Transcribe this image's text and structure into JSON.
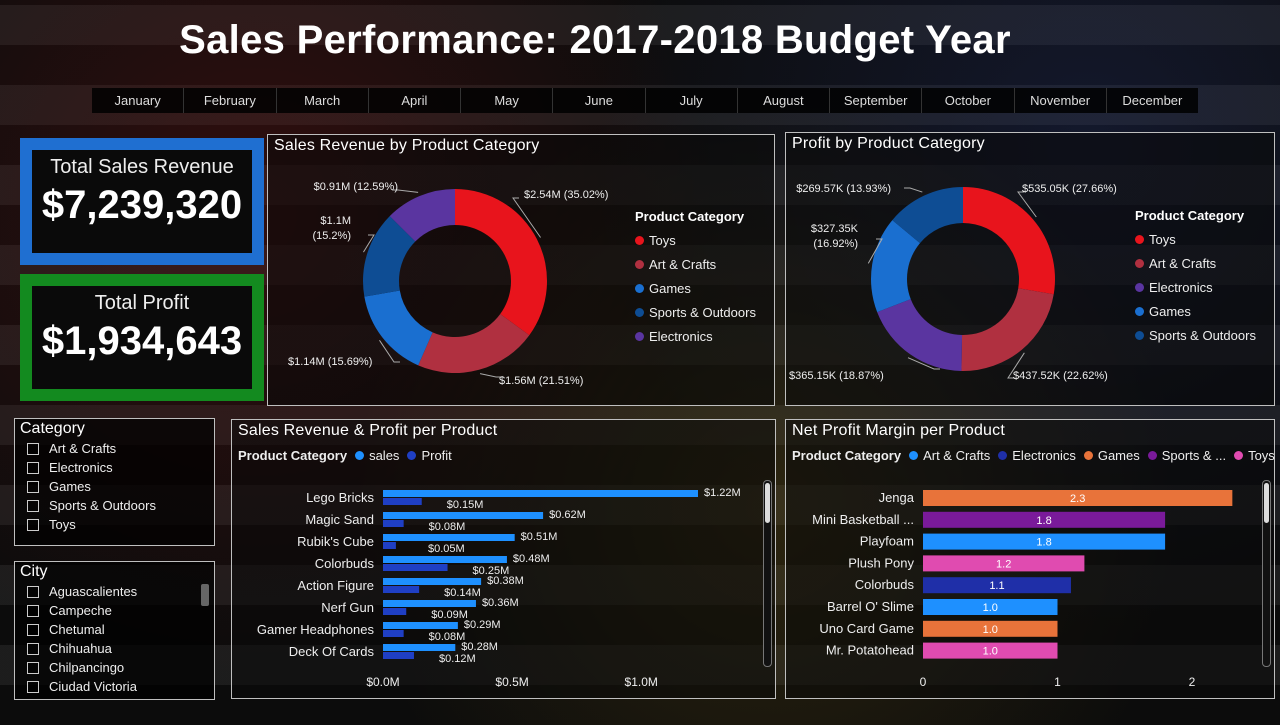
{
  "title": "Sales Performance: 2017-2018 Budget Year",
  "months": [
    "January",
    "February",
    "March",
    "April",
    "May",
    "June",
    "July",
    "August",
    "September",
    "October",
    "November",
    "December"
  ],
  "kpis": {
    "sales_label": "Total Sales Revenue",
    "sales_value": "$7,239,320",
    "profit_label": "Total Profit",
    "profit_value": "$1,934,643"
  },
  "panels": {
    "sales_donut_title": "Sales Revenue by Product Category",
    "profit_donut_title": "Profit by Product Category",
    "bar_title": "Sales Revenue & Profit per Product",
    "margin_title": "Net Profit Margin per Product"
  },
  "slicers": {
    "category": {
      "title": "Category",
      "items": [
        "Art & Crafts",
        "Electronics",
        "Games",
        "Sports & Outdoors",
        "Toys"
      ]
    },
    "city": {
      "title": "City",
      "items": [
        "Aguascalientes",
        "Campeche",
        "Chetumal",
        "Chihuahua",
        "Chilpancingo",
        "Ciudad Victoria"
      ]
    }
  },
  "colors": {
    "toys": "#e8141c",
    "art": "#b03040",
    "games": "#1a6fd0",
    "sports": "#0e4d94",
    "electronics": "#5a35a0",
    "sales_bar": "#1e90ff",
    "profit_bar": "#1f3fc4",
    "kpi_sales_border": "#1f6fd1",
    "kpi_profit_border": "#138a1f"
  },
  "chart_data": [
    {
      "type": "pie",
      "title": "Sales Revenue by Product Category",
      "legend_title": "Product Category",
      "legend": [
        "Toys",
        "Art & Crafts",
        "Games",
        "Sports & Outdoors",
        "Electronics"
      ],
      "slices": [
        {
          "name": "Toys",
          "value": 2.54,
          "percent": 35.02,
          "label": "$2.54M (35.02%)",
          "color": "#e8141c"
        },
        {
          "name": "Art & Crafts",
          "value": 1.56,
          "percent": 21.51,
          "label": "$1.56M (21.51%)",
          "color": "#b03040"
        },
        {
          "name": "Games",
          "value": 1.14,
          "percent": 15.69,
          "label": "$1.14M (15.69%)",
          "color": "#1a6fd0"
        },
        {
          "name": "Sports & Outdoors",
          "value": 1.1,
          "percent": 15.2,
          "label": "$1.1M (15.2%)",
          "color": "#0e4d94"
        },
        {
          "name": "Electronics",
          "value": 0.91,
          "percent": 12.59,
          "label": "$0.91M (12.59%)",
          "color": "#5a35a0"
        }
      ]
    },
    {
      "type": "pie",
      "title": "Profit by Product Category",
      "legend_title": "Product Category",
      "legend": [
        "Toys",
        "Art & Crafts",
        "Electronics",
        "Games",
        "Sports & Outdoors"
      ],
      "slices": [
        {
          "name": "Toys",
          "value": 535.05,
          "percent": 27.66,
          "label": "$535.05K (27.66%)",
          "color": "#e8141c"
        },
        {
          "name": "Art & Crafts",
          "value": 437.52,
          "percent": 22.62,
          "label": "$437.52K (22.62%)",
          "color": "#b03040"
        },
        {
          "name": "Electronics",
          "value": 365.15,
          "percent": 18.87,
          "label": "$365.15K (18.87%)",
          "color": "#5a35a0"
        },
        {
          "name": "Games",
          "value": 327.35,
          "percent": 16.92,
          "label": "$327.35K (16.92%)",
          "color": "#1a6fd0"
        },
        {
          "name": "Sports & Outdoors",
          "value": 269.57,
          "percent": 13.93,
          "label": "$269.57K (13.93%)",
          "color": "#0e4d94"
        }
      ]
    },
    {
      "type": "bar",
      "title": "Sales Revenue & Profit per Product",
      "legend_title": "Product Category",
      "categories": [
        "Lego Bricks",
        "Magic Sand",
        "Rubik's Cube",
        "Colorbuds",
        "Action Figure",
        "Nerf Gun",
        "Gamer Headphones",
        "Deck Of Cards"
      ],
      "series": [
        {
          "name": "sales",
          "values": [
            1.22,
            0.62,
            0.51,
            0.48,
            0.38,
            0.36,
            0.29,
            0.28
          ],
          "labels": [
            "$1.22M",
            "$0.62M",
            "$0.51M",
            "$0.48M",
            "$0.38M",
            "$0.36M",
            "$0.29M",
            "$0.28M"
          ]
        },
        {
          "name": "Profit",
          "values": [
            0.15,
            0.08,
            0.05,
            0.25,
            0.14,
            0.09,
            0.08,
            0.12
          ],
          "labels": [
            "$0.15M",
            "$0.08M",
            "$0.05M",
            "$0.25M",
            "$0.14M",
            "$0.09M",
            "$0.08M",
            "$0.12M"
          ]
        }
      ],
      "xticks": [
        "$0.0M",
        "$0.5M",
        "$1.0M"
      ],
      "xlim": [
        0,
        1.22
      ]
    },
    {
      "type": "bar",
      "title": "Net Profit Margin per Product",
      "legend_title": "Product Category",
      "legend": [
        {
          "name": "Art & Crafts",
          "color": "#1e90ff"
        },
        {
          "name": "Electronics",
          "color": "#1f2fa8"
        },
        {
          "name": "Games",
          "color": "#e8733a"
        },
        {
          "name": "Sports & ...",
          "color": "#7a1a9a"
        },
        {
          "name": "Toys",
          "color": "#e04bb0"
        }
      ],
      "categories": [
        "Jenga",
        "Mini Basketball ...",
        "Playfoam",
        "Plush Pony",
        "Colorbuds",
        "Barrel O' Slime",
        "Uno Card Game",
        "Mr. Potatohead"
      ],
      "values": [
        2.3,
        1.8,
        1.8,
        1.2,
        1.1,
        1.0,
        1.0,
        1.0
      ],
      "labels": [
        "2.3",
        "1.8",
        "1.8",
        "1.2",
        "1.1",
        "1.0",
        "1.0",
        "1.0"
      ],
      "colors": [
        "#e8733a",
        "#7a1a9a",
        "#1e90ff",
        "#e04bb0",
        "#1f2fa8",
        "#1e90ff",
        "#e8733a",
        "#e04bb0"
      ],
      "xticks": [
        "0",
        "1",
        "2"
      ],
      "xlim": [
        0,
        2.33
      ]
    }
  ]
}
